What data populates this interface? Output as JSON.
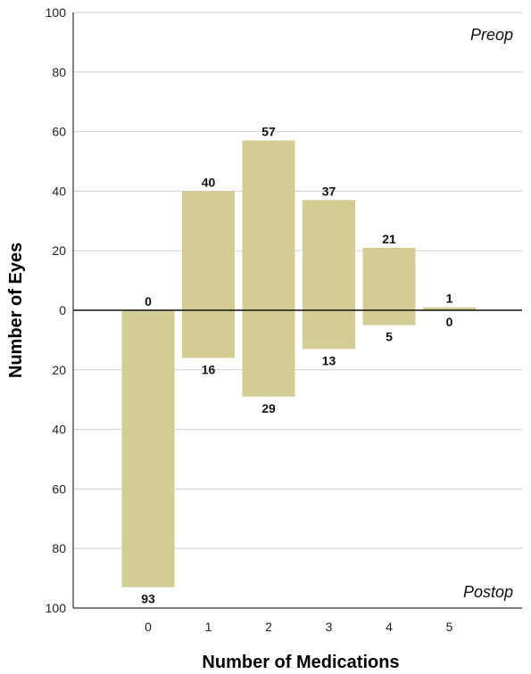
{
  "chart_data": {
    "type": "bar",
    "xlabel": "Number of Medications",
    "ylabel": "Number of Eyes",
    "ylim_top": [
      0,
      100
    ],
    "ylim_bottom": [
      0,
      100
    ],
    "yticks_top": [
      "100",
      "80",
      "60",
      "40",
      "20"
    ],
    "ytick_zero": "0",
    "yticks_bottom": [
      "20",
      "40",
      "60",
      "80",
      "100"
    ],
    "categories": [
      "0",
      "1",
      "2",
      "3",
      "4",
      "5"
    ],
    "series": [
      {
        "name": "Preop",
        "values": [
          0,
          40,
          57,
          37,
          21,
          1
        ]
      },
      {
        "name": "Postop",
        "values": [
          93,
          16,
          29,
          13,
          5,
          0
        ]
      }
    ],
    "bar_color": "#d3cd93",
    "grid": true
  }
}
